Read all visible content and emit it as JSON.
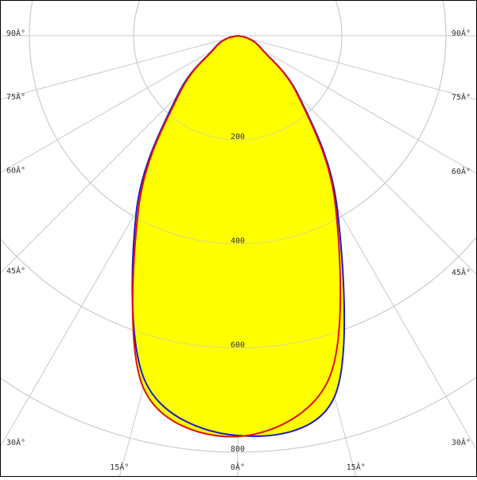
{
  "chart_data": {
    "type": "polar",
    "x": [
      -90,
      -75,
      -60,
      -45,
      -30,
      -15,
      0,
      15,
      30,
      45,
      60,
      75,
      90
    ],
    "series": [
      {
        "color": "#1a1acc",
        "values": [
          0,
          23,
          56,
          165,
          389,
          687,
          768,
          718,
          382,
          168,
          56,
          23,
          0
        ]
      },
      {
        "color": "#e01010",
        "values": [
          0,
          22,
          54,
          160,
          380,
          700,
          770,
          680,
          375,
          165,
          55,
          22,
          0
        ]
      }
    ],
    "fill": "#ffff00",
    "ylim": [
      0,
      800
    ],
    "yticks": [
      200,
      400,
      600,
      800
    ],
    "xticks": [
      {
        "value": -90,
        "label": "90Â°"
      },
      {
        "value": -75,
        "label": "75Â°"
      },
      {
        "value": -60,
        "label": "60Â°"
      },
      {
        "value": -45,
        "label": "45Â°"
      },
      {
        "value": -30,
        "label": "30Â°"
      },
      {
        "value": -15,
        "label": "15Â°"
      },
      {
        "value": 0,
        "label": "0Â°"
      },
      {
        "value": 15,
        "label": "15Â°"
      },
      {
        "value": 30,
        "label": "30Â°"
      },
      {
        "value": 45,
        "label": "45Â°"
      },
      {
        "value": 60,
        "label": "60Â°"
      },
      {
        "value": 75,
        "label": "75Â°"
      },
      {
        "value": 90,
        "label": "90Â°"
      }
    ],
    "grid": true
  }
}
